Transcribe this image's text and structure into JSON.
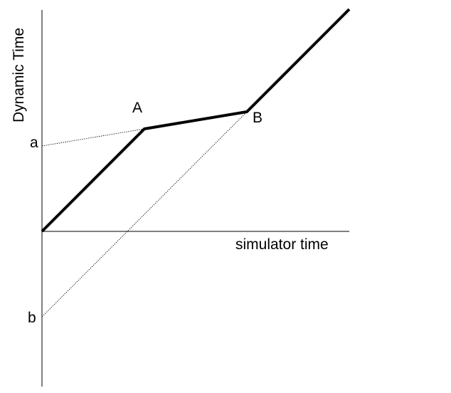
{
  "axes": {
    "x_label": "simulator time",
    "y_label": "Dynamic Time"
  },
  "points": {
    "A": "A",
    "B": "B"
  },
  "intercepts": {
    "a": "a",
    "b": "b"
  },
  "colors": {
    "background": "#ffffff",
    "ink": "#000000"
  }
}
